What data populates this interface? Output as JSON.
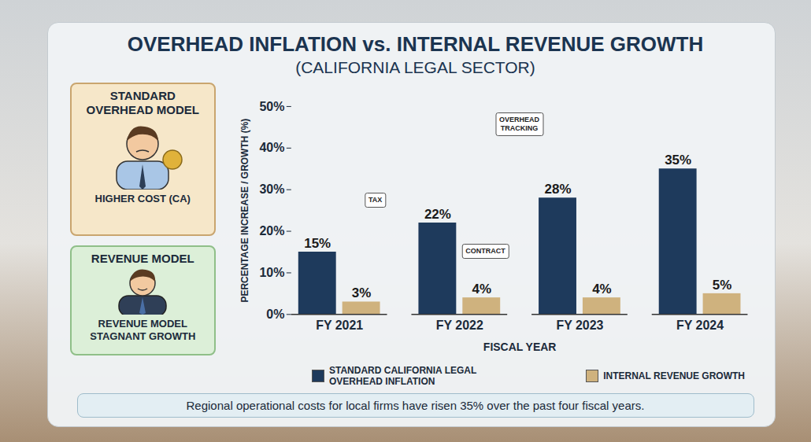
{
  "chart_data": {
    "type": "bar",
    "title": "OVERHEAD INFLATION vs. INTERNAL REVENUE GROWTH",
    "subtitle": "(CALIFORNIA LEGAL SECTOR)",
    "x_label": "FISCAL YEAR",
    "y_label": "PERCENTAGE INCREASE / GROWTH (%)",
    "categories": [
      "FY 2021",
      "FY 2022",
      "FY 2023",
      "FY 2024"
    ],
    "series": [
      {
        "name": "STANDARD CALIFORNIA LEGAL OVERHEAD INFLATION",
        "color": "#1e3a5c",
        "values": [
          15,
          22,
          28,
          35
        ],
        "value_labels": [
          "15%",
          "22%",
          "28%",
          "35%"
        ]
      },
      {
        "name": "INTERNAL REVENUE GROWTH",
        "color": "#cfb27e",
        "values": [
          3,
          4,
          4,
          5
        ],
        "value_labels": [
          "3%",
          "4%",
          "4%",
          "5%"
        ]
      }
    ],
    "ylim": [
      0,
      50
    ],
    "yticks": [
      {
        "value": 0,
        "label": "0%"
      },
      {
        "value": 10,
        "label": "10%"
      },
      {
        "value": 20,
        "label": "20%"
      },
      {
        "value": 30,
        "label": "30%"
      },
      {
        "value": 40,
        "label": "40%"
      },
      {
        "value": 50,
        "label": "50%"
      }
    ],
    "grid": false,
    "legend": "bottom",
    "data_labels": true,
    "annotations": [
      "TAX",
      "CONTRACT",
      "OVERHEAD TRACKING"
    ],
    "side_panels": [
      {
        "title": "STANDARD OVERHEAD MODEL",
        "label": "HIGHER COST (CA)"
      },
      {
        "title": "REVENUE MODEL",
        "label": "REVENUE MODEL STAGNANT GROWTH"
      }
    ],
    "caption": "Regional operational costs for local firms have risen 35% over the past four fiscal years."
  }
}
